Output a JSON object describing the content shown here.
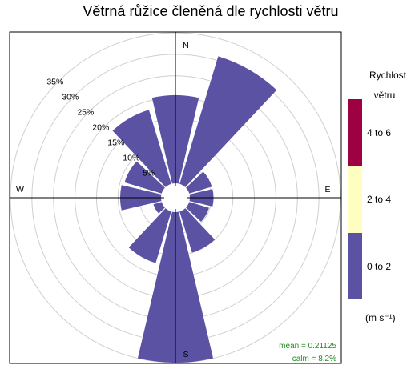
{
  "chart_data": {
    "type": "windrose",
    "title": "Větrná růžice členěná dle rychlosti větru",
    "directions": [
      0,
      30,
      60,
      90,
      120,
      150,
      180,
      210,
      240,
      270,
      300,
      330
    ],
    "direction_labels": [
      "N",
      "E",
      "S",
      "W"
    ],
    "radial_ticks": [
      5,
      10,
      15,
      20,
      25,
      30,
      35
    ],
    "radial_tick_labels": [
      "5%",
      "10%",
      "15%",
      "20%",
      "25%",
      "30%",
      "35%"
    ],
    "radial_max": 35,
    "calm_fraction": 8.2,
    "series": [
      {
        "name": "0 to 2",
        "color": "#5c52a4",
        "values": [
          20.5,
          31.0,
          5.5,
          5.5,
          4.8,
          10.0,
          35.0,
          12.5,
          2.0,
          9.5,
          9.0,
          18.0
        ]
      },
      {
        "name": "2 to 4",
        "color": "#fefec0",
        "values": [
          0,
          0,
          0,
          0,
          0,
          0,
          0,
          0,
          0,
          0,
          0,
          0
        ]
      },
      {
        "name": "4 to 6",
        "color": "#9e0142",
        "values": [
          0,
          0,
          0,
          0,
          0,
          0,
          0,
          0,
          0,
          0,
          0,
          0
        ]
      }
    ],
    "legend": {
      "title_line1": "Rychlost",
      "title_line2": "větru",
      "unit": "(m s⁻¹)",
      "entries": [
        "4 to 6",
        "2 to 4",
        "0 to 2"
      ],
      "placement": "right"
    },
    "stats": {
      "mean": "mean = 0.21125",
      "calm": "calm = 8.2%"
    }
  }
}
